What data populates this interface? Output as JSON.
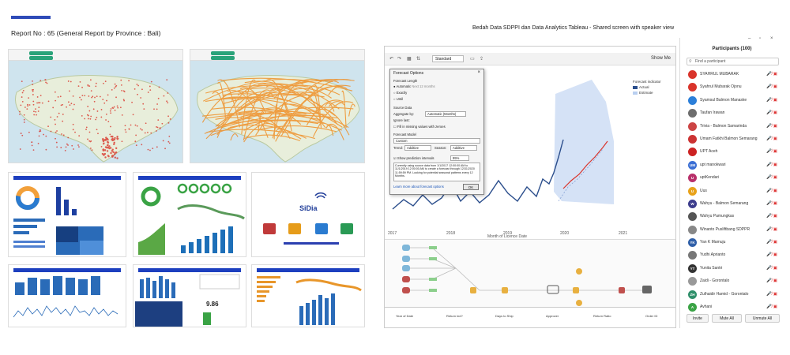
{
  "left_panel": {
    "report_title": "Report No : 65 (General Report by Province : Bali)",
    "sidia_brand": "SiDia"
  },
  "right_panel": {
    "title": "Bedah Data SDPPI dan Data Analytics Tableau - Shared screen with speaker view",
    "tableau": {
      "toolbar_standard": "Standard",
      "show_me": "Show Me",
      "forecast_indicator": {
        "title": "Forecast indicator",
        "items": [
          "Actual",
          "Estimate"
        ]
      },
      "forecast_dialog": {
        "title": "Forecast Options",
        "forecast_length_label": "Forecast Length",
        "options": [
          "Automatic",
          "Exactly",
          "Until"
        ],
        "automatic_note": "Next 12 months",
        "source_data_label": "Source Data",
        "aggregate_by_label": "Aggregate by:",
        "aggregate_by_value": "Automatic (Months)",
        "ignore_last_label": "Ignore last:",
        "fill_missing_label": "Fill in missing values with zeroes",
        "forecast_model_label": "Forecast Model",
        "model_value": "Custom",
        "trend_label": "Trend:",
        "trend_value": "Additive",
        "season_label": "Season:",
        "season_value": "Additive",
        "show_intervals_label": "Show prediction intervals",
        "interval_value": "95%",
        "description": "Currently using source data from 1/1/2017 12:00:00 AM to 11/1/2019 12:00:00 AM to create a forecast through 12/31/2020 11:59:59 PM. Looking for potential seasonal patterns every 12 Months.",
        "learn_more": "Learn more about forecast options",
        "ok_label": "OK"
      },
      "x_axis_label": "Month of Licence Date",
      "x_ticks": [
        "2017",
        "2018",
        "2019",
        "2020",
        "2021"
      ],
      "table_columns": [
        "Year of Date",
        "Return ind?",
        "Days to Ship",
        "Approver",
        "Return Ratio",
        "Order ID"
      ]
    }
  },
  "participants": {
    "title": "Participants (100)",
    "search_placeholder": "Find a participant",
    "list": [
      {
        "name": "SYAHRUL MUBARAK",
        "initials": "",
        "color": "#d9342b"
      },
      {
        "name": "Syahrul Mubarak Ojonu",
        "initials": "",
        "color": "#d9342b"
      },
      {
        "name": "Syamsul Balmon Manaske",
        "initials": "",
        "color": "#2b7fd9"
      },
      {
        "name": "Taufan Irawan",
        "initials": "",
        "color": "#6d6d6d"
      },
      {
        "name": "Trivia - Balmon Samarinda",
        "initials": "",
        "color": "#c44"
      },
      {
        "name": "Umam Fatkhi Balmon Semarang",
        "initials": "",
        "color": "#c33"
      },
      {
        "name": "UPT Aceh",
        "initials": "",
        "color": "#c22"
      },
      {
        "name": "upt manokwari",
        "initials": "UM",
        "color": "#3b6fd4"
      },
      {
        "name": "uptKendari",
        "initials": "U",
        "color": "#b82f6a"
      },
      {
        "name": "Uus",
        "initials": "U",
        "color": "#e8a21a"
      },
      {
        "name": "Wahyu - Balmon Semarang",
        "initials": "W",
        "color": "#3c3c8c"
      },
      {
        "name": "Wahyu Pamungkas",
        "initials": "",
        "color": "#555"
      },
      {
        "name": "Winanto Pusliftbang SDPPR",
        "initials": "",
        "color": "#888"
      },
      {
        "name": "Yan K Mamuju",
        "initials": "YK",
        "color": "#2f5fa8"
      },
      {
        "name": "Yudhi Aprianto",
        "initials": "",
        "color": "#777"
      },
      {
        "name": "Yunita Santri",
        "initials": "YT",
        "color": "#333"
      },
      {
        "name": "Zaidi - Gorontalo",
        "initials": "",
        "color": "#999"
      },
      {
        "name": "Zulhaidir Hamid - Gorontalo",
        "initials": "ZH",
        "color": "#2f8f6a"
      },
      {
        "name": "Avhani",
        "initials": "A",
        "color": "#3aa345"
      }
    ],
    "buttons": {
      "invite": "Invite",
      "mute_all": "Mute All",
      "unmute_all": "Unmute All"
    }
  }
}
